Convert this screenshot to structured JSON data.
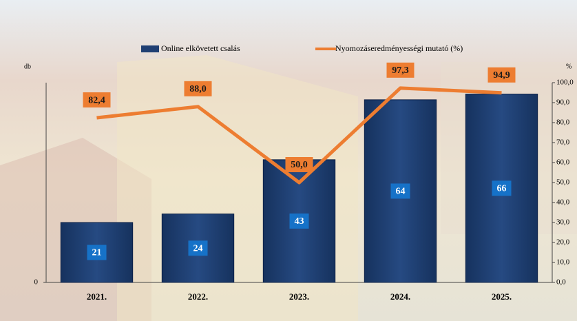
{
  "chart_data": {
    "type": "bar-line",
    "categories": [
      "2021.",
      "2022.",
      "2023.",
      "2024.",
      "2025."
    ],
    "ylabel": "db",
    "y2label": "%",
    "series": [
      {
        "name": "Online elkövetett csalás",
        "type": "bar",
        "color": "#1f3f73",
        "values": [
          21,
          24,
          43,
          64,
          66
        ]
      },
      {
        "name": "Nyomozáseredményességi mutató (%)",
        "type": "line",
        "axis": "y2",
        "color": "#ed7d31",
        "values": [
          82.4,
          88.0,
          50.0,
          97.3,
          94.9
        ],
        "value_labels": [
          "82,4",
          "88,0",
          "50,0",
          "97,3",
          "94,9"
        ]
      }
    ],
    "ylim": [
      0,
      70
    ],
    "yticks": [
      0
    ],
    "y2lim": [
      0,
      100
    ],
    "y2ticks": [
      {
        "value": 0,
        "label": "0,0"
      },
      {
        "value": 10,
        "label": "10,0"
      },
      {
        "value": 20,
        "label": "20,0"
      },
      {
        "value": 30,
        "label": "30,0"
      },
      {
        "value": 40,
        "label": "40,0"
      },
      {
        "value": 50,
        "label": "50,0"
      },
      {
        "value": 60,
        "label": "60,0"
      },
      {
        "value": 70,
        "label": "70,0"
      },
      {
        "value": 80,
        "label": "80,0"
      },
      {
        "value": 90,
        "label": "90,0"
      },
      {
        "value": 100,
        "label": "100,0"
      }
    ]
  }
}
